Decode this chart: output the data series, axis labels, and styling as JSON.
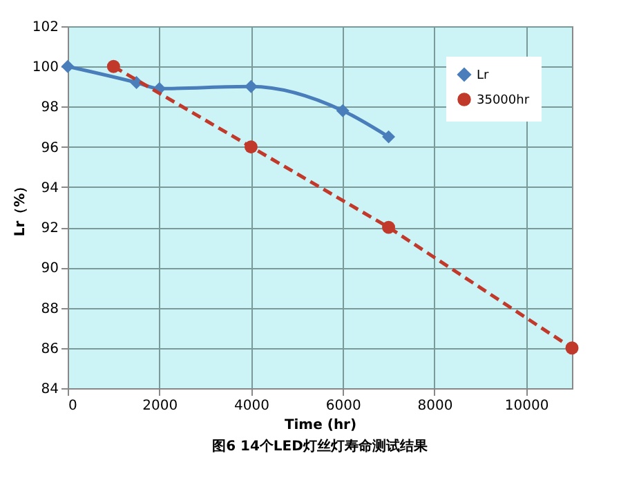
{
  "chart_data": {
    "type": "line",
    "xlabel": "Time (hr)",
    "ylabel": "Lr（%）",
    "annotations": [
      "图6 14个LED灯丝灯寿命测试结果"
    ],
    "series": [
      {
        "name": "Lr",
        "color": "#4a7ebb",
        "marker": "diamond",
        "line_style": "solid",
        "x": [
          0,
          1500,
          2000,
          4000,
          6000,
          7000
        ],
        "values": [
          100,
          99.2,
          98.9,
          99.0,
          97.8,
          96.5
        ]
      },
      {
        "name": "35000hr",
        "color": "#c0392b",
        "marker": "circle",
        "line_style": "dashed",
        "x": [
          1000,
          4000,
          7000,
          11000
        ],
        "values": [
          100,
          96,
          92,
          86
        ]
      }
    ],
    "xlim": [
      0,
      11000
    ],
    "xticks": [
      0,
      2000,
      4000,
      6000,
      8000,
      10000
    ],
    "ylim": [
      84,
      102
    ],
    "yticks": [
      84,
      86,
      88,
      90,
      92,
      94,
      96,
      98,
      100,
      102
    ],
    "grid": true,
    "legend": "top right"
  }
}
